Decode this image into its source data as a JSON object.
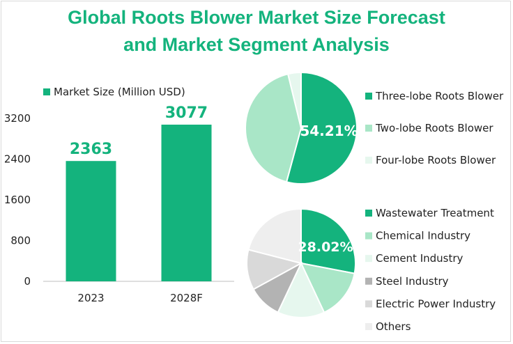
{
  "title_line1": "Global Roots Blower Market Size Forecast",
  "title_line2": "and Market Segment Analysis",
  "colors": {
    "accent": "#14b37d",
    "bar": "#14b37d",
    "title": "#14b37d"
  },
  "chart_data": [
    {
      "type": "bar",
      "legend": "Market Size (Million USD)",
      "categories": [
        "2023",
        "2028F"
      ],
      "values": [
        2363,
        3077
      ],
      "data_labels": [
        "2363",
        "3077"
      ],
      "yticks": [
        0,
        800,
        1600,
        2400,
        3200
      ],
      "ylim": [
        0,
        3200
      ],
      "legend_position": "top-left"
    },
    {
      "type": "pie",
      "legend_position": "right",
      "slices": [
        {
          "name": "Three-lobe Roots Blower",
          "value": 54.21,
          "color": "#14b37d"
        },
        {
          "name": "Two-lobe Roots Blower",
          "value": 42.0,
          "color": "#a9e6c7"
        },
        {
          "name": "Four-lobe Roots Blower",
          "value": 3.79,
          "color": "#e6f7ee"
        }
      ],
      "data_label": "54.21%"
    },
    {
      "type": "pie",
      "legend_position": "right",
      "slices": [
        {
          "name": "Wastewater Treatment",
          "value": 28.02,
          "color": "#14b37d"
        },
        {
          "name": "Chemical Industry",
          "value": 15,
          "color": "#a9e6c7"
        },
        {
          "name": "Cement Industry",
          "value": 14,
          "color": "#e6f7ee"
        },
        {
          "name": "Steel Industry",
          "value": 10,
          "color": "#b3b3b3"
        },
        {
          "name": "Electric Power Industry",
          "value": 12,
          "color": "#d9d9d9"
        },
        {
          "name": "Others",
          "value": 20.98,
          "color": "#eeeeee"
        }
      ],
      "data_label": "28.02%"
    }
  ]
}
